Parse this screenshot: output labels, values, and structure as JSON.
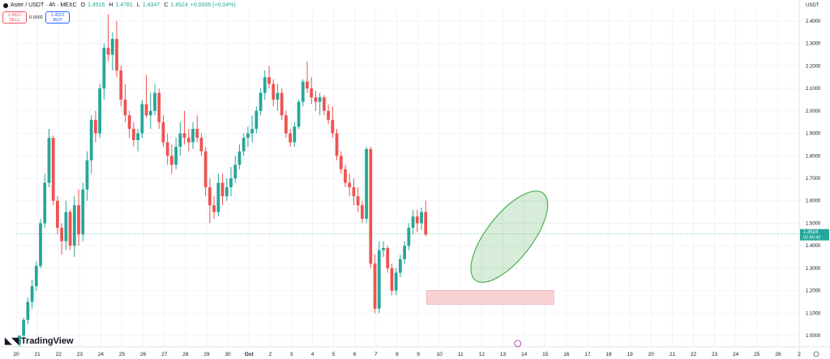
{
  "header": {
    "symbol": "Aster / USDT · 4h · MEXC",
    "o_label": "O",
    "o": "1.4516",
    "h_label": "H",
    "h": "1.4781",
    "l_label": "L",
    "l": "1.4347",
    "c_label": "C",
    "c": "1.4524",
    "change": "+0.0006 (+0.04%)"
  },
  "trade": {
    "sell_price": "1.4521",
    "sell_label": "SELL",
    "spread": "0.0002",
    "buy_price": "1.4523",
    "buy_label": "BUY"
  },
  "currency": "USDT",
  "brand": "TradingView",
  "colors": {
    "up": "#26a69a",
    "down": "#ef5350",
    "zone": "#f7c4c6",
    "ellipse": "#4caf50"
  },
  "chart_data": {
    "type": "candlestick",
    "ylim": [
      0.95,
      2.45
    ],
    "xlim": [
      0,
      37
    ],
    "yticks": [
      1.0,
      1.1,
      1.2,
      1.3,
      1.4,
      1.5,
      1.6,
      1.7,
      1.8,
      1.9,
      2.0,
      2.1,
      2.2,
      2.3,
      2.4
    ],
    "ytick_labels": [
      "1.0000",
      "1.1000",
      "1.2000",
      "1.3000",
      "1.4000",
      "1.5000",
      "1.6000",
      "1.7000",
      "1.8000",
      "1.9000",
      "2.0000",
      "2.1000",
      "2.2000",
      "2.3000",
      "2.4000"
    ],
    "xticks": [
      0,
      1,
      2,
      3,
      4,
      5,
      6,
      7,
      8,
      9,
      10,
      11,
      12,
      13,
      14,
      15,
      16,
      17,
      18,
      19,
      20,
      21,
      22,
      23,
      24,
      25,
      26,
      27,
      28,
      29,
      30,
      31,
      32,
      33,
      34,
      35,
      36,
      37
    ],
    "xtick_labels": [
      "20",
      "21",
      "22",
      "23",
      "24",
      "25",
      "26",
      "27",
      "28",
      "29",
      "30",
      "Oct",
      "2",
      "3",
      "4",
      "5",
      "6",
      "7",
      "8",
      "9",
      "10",
      "11",
      "12",
      "13",
      "14",
      "15",
      "16",
      "17",
      "18",
      "19",
      "20",
      "21",
      "22",
      "23",
      "24",
      "25",
      "26",
      "2"
    ],
    "last_price": {
      "value": 1.4524,
      "label": "1.4524",
      "countdown": "02:46:40"
    },
    "support_zone": {
      "x0": 19.4,
      "x1": 25.4,
      "y0": 1.14,
      "y1": 1.2
    },
    "ellipse": {
      "cx": 23.3,
      "cy": 1.44,
      "rx": 0.85,
      "ry": 0.32,
      "angle_deg": -52
    },
    "candles": [
      [
        0.15,
        0.96,
        1.0,
        0.95,
        1.0
      ],
      [
        0.35,
        1.0,
        1.08,
        0.98,
        1.07
      ],
      [
        0.55,
        1.07,
        1.17,
        1.05,
        1.15
      ],
      [
        0.75,
        1.15,
        1.25,
        1.12,
        1.22
      ],
      [
        0.95,
        1.22,
        1.33,
        1.2,
        1.31
      ],
      [
        1.15,
        1.31,
        1.52,
        1.3,
        1.5
      ],
      [
        1.35,
        1.5,
        1.72,
        1.48,
        1.68
      ],
      [
        1.55,
        1.68,
        1.92,
        1.66,
        1.88
      ],
      [
        1.75,
        1.88,
        1.89,
        1.58,
        1.6
      ],
      [
        1.95,
        1.6,
        1.62,
        1.45,
        1.48
      ],
      [
        2.15,
        1.48,
        1.5,
        1.36,
        1.42
      ],
      [
        2.35,
        1.42,
        1.6,
        1.38,
        1.55
      ],
      [
        2.55,
        1.55,
        1.56,
        1.38,
        1.4
      ],
      [
        2.75,
        1.4,
        1.62,
        1.35,
        1.58
      ],
      [
        2.95,
        1.58,
        1.65,
        1.4,
        1.45
      ],
      [
        3.15,
        1.45,
        1.68,
        1.42,
        1.65
      ],
      [
        3.35,
        1.65,
        1.82,
        1.6,
        1.78
      ],
      [
        3.55,
        1.78,
        1.98,
        1.72,
        1.96
      ],
      [
        3.75,
        1.96,
        2.0,
        1.86,
        1.9
      ],
      [
        3.95,
        1.9,
        2.12,
        1.88,
        2.1
      ],
      [
        4.15,
        2.1,
        2.3,
        2.05,
        2.28
      ],
      [
        4.35,
        2.28,
        2.43,
        2.22,
        2.25
      ],
      [
        4.55,
        2.25,
        2.35,
        2.18,
        2.32
      ],
      [
        4.75,
        2.32,
        2.4,
        2.15,
        2.18
      ],
      [
        4.95,
        2.18,
        2.2,
        2.02,
        2.05
      ],
      [
        5.15,
        2.05,
        2.12,
        1.95,
        1.98
      ],
      [
        5.35,
        1.98,
        2.0,
        1.88,
        1.92
      ],
      [
        5.55,
        1.92,
        1.95,
        1.84,
        1.87
      ],
      [
        5.75,
        1.87,
        1.92,
        1.82,
        1.9
      ],
      [
        5.95,
        1.9,
        2.05,
        1.88,
        2.03
      ],
      [
        6.15,
        2.03,
        2.16,
        1.97,
        1.98
      ],
      [
        6.35,
        1.98,
        2.08,
        1.92,
        2.0
      ],
      [
        6.55,
        2.0,
        2.12,
        1.98,
        2.08
      ],
      [
        6.75,
        2.08,
        2.1,
        1.92,
        1.95
      ],
      [
        6.95,
        1.95,
        1.98,
        1.84,
        1.86
      ],
      [
        7.15,
        1.86,
        1.9,
        1.76,
        1.8
      ],
      [
        7.35,
        1.8,
        1.85,
        1.72,
        1.76
      ],
      [
        7.55,
        1.76,
        1.88,
        1.74,
        1.84
      ],
      [
        7.75,
        1.84,
        1.95,
        1.8,
        1.9
      ],
      [
        7.95,
        1.9,
        2.0,
        1.85,
        1.88
      ],
      [
        8.15,
        1.88,
        1.92,
        1.82,
        1.86
      ],
      [
        8.35,
        1.86,
        1.95,
        1.83,
        1.92
      ],
      [
        8.55,
        1.92,
        1.98,
        1.86,
        1.88
      ],
      [
        8.75,
        1.88,
        1.9,
        1.8,
        1.82
      ],
      [
        8.95,
        1.82,
        1.84,
        1.62,
        1.66
      ],
      [
        9.15,
        1.66,
        1.7,
        1.5,
        1.58
      ],
      [
        9.35,
        1.58,
        1.62,
        1.52,
        1.55
      ],
      [
        9.55,
        1.55,
        1.72,
        1.53,
        1.68
      ],
      [
        9.75,
        1.68,
        1.72,
        1.58,
        1.62
      ],
      [
        9.95,
        1.62,
        1.7,
        1.6,
        1.66
      ],
      [
        10.15,
        1.66,
        1.75,
        1.62,
        1.7
      ],
      [
        10.35,
        1.7,
        1.8,
        1.68,
        1.76
      ],
      [
        10.55,
        1.76,
        1.85,
        1.74,
        1.82
      ],
      [
        10.75,
        1.82,
        1.9,
        1.8,
        1.88
      ],
      [
        10.95,
        1.88,
        1.93,
        1.84,
        1.9
      ],
      [
        11.15,
        1.9,
        1.98,
        1.86,
        1.92
      ],
      [
        11.35,
        1.92,
        2.02,
        1.9,
        2.0
      ],
      [
        11.55,
        2.0,
        2.1,
        1.98,
        2.08
      ],
      [
        11.75,
        2.08,
        2.18,
        2.05,
        2.15
      ],
      [
        11.95,
        2.15,
        2.2,
        2.1,
        2.12
      ],
      [
        12.15,
        2.12,
        2.14,
        2.02,
        2.05
      ],
      [
        12.35,
        2.05,
        2.12,
        2.0,
        2.08
      ],
      [
        12.55,
        2.08,
        2.1,
        1.96,
        1.98
      ],
      [
        12.75,
        1.98,
        2.0,
        1.88,
        1.9
      ],
      [
        12.95,
        1.9,
        1.92,
        1.84,
        1.86
      ],
      [
        13.15,
        1.86,
        1.95,
        1.84,
        1.93
      ],
      [
        13.35,
        1.93,
        2.05,
        1.92,
        2.04
      ],
      [
        13.55,
        2.04,
        2.14,
        2.02,
        2.13
      ],
      [
        13.75,
        2.13,
        2.22,
        2.08,
        2.1
      ],
      [
        13.95,
        2.1,
        2.15,
        2.03,
        2.06
      ],
      [
        14.15,
        2.06,
        2.09,
        2.0,
        2.04
      ],
      [
        14.35,
        2.04,
        2.08,
        1.98,
        2.06
      ],
      [
        14.55,
        2.06,
        2.07,
        1.98,
        2.0
      ],
      [
        14.75,
        2.0,
        2.03,
        1.94,
        1.96
      ],
      [
        14.95,
        1.96,
        2.02,
        1.88,
        1.9
      ],
      [
        15.15,
        1.9,
        1.92,
        1.78,
        1.8
      ],
      [
        15.35,
        1.8,
        1.82,
        1.72,
        1.74
      ],
      [
        15.55,
        1.74,
        1.76,
        1.66,
        1.68
      ],
      [
        15.75,
        1.68,
        1.72,
        1.62,
        1.66
      ],
      [
        15.95,
        1.66,
        1.7,
        1.58,
        1.62
      ],
      [
        16.15,
        1.62,
        1.66,
        1.55,
        1.58
      ],
      [
        16.35,
        1.58,
        1.6,
        1.5,
        1.52
      ],
      [
        16.55,
        1.52,
        1.84,
        1.5,
        1.83
      ],
      [
        16.75,
        1.83,
        1.84,
        1.3,
        1.32
      ],
      [
        16.95,
        1.32,
        1.36,
        1.1,
        1.12
      ],
      [
        17.15,
        1.12,
        1.42,
        1.1,
        1.38
      ],
      [
        17.35,
        1.38,
        1.42,
        1.35,
        1.39
      ],
      [
        17.55,
        1.39,
        1.4,
        1.28,
        1.3
      ],
      [
        17.75,
        1.3,
        1.32,
        1.18,
        1.2
      ],
      [
        17.95,
        1.2,
        1.3,
        1.18,
        1.28
      ],
      [
        18.15,
        1.28,
        1.36,
        1.26,
        1.34
      ],
      [
        18.35,
        1.34,
        1.42,
        1.32,
        1.4
      ],
      [
        18.55,
        1.4,
        1.5,
        1.38,
        1.48
      ],
      [
        18.75,
        1.48,
        1.56,
        1.45,
        1.53
      ],
      [
        18.95,
        1.53,
        1.56,
        1.46,
        1.5
      ],
      [
        19.15,
        1.5,
        1.57,
        1.47,
        1.55
      ],
      [
        19.35,
        1.55,
        1.6,
        1.44,
        1.45
      ]
    ]
  }
}
